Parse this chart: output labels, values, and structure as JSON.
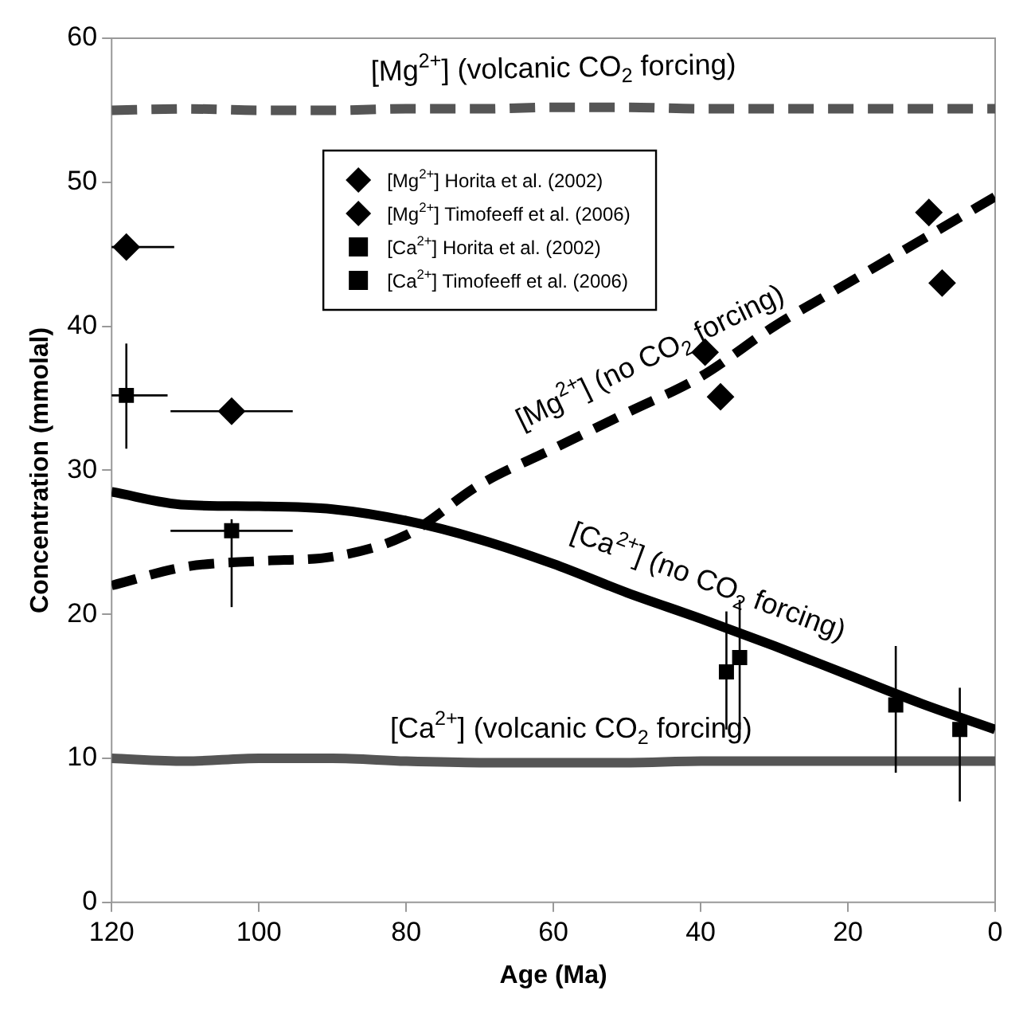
{
  "chart_data": {
    "type": "scatter",
    "xlabel": "Age (Ma)",
    "ylabel": "Concentration (mmolal)",
    "xlim": [
      120,
      0
    ],
    "xticks": [
      120,
      100,
      80,
      60,
      40,
      20,
      0
    ],
    "ylim": [
      0,
      60
    ],
    "yticks": [
      0,
      10,
      20,
      30,
      40,
      50,
      60
    ],
    "grid": false,
    "legend": "top",
    "series": [
      {
        "type": "line",
        "color": "#555555",
        "line_style": "dashed",
        "marker": "none",
        "x": [
          120,
          110,
          100,
          90,
          80,
          70,
          60,
          50,
          40,
          30,
          20,
          10,
          0
        ],
        "values": [
          55,
          55.1,
          55,
          55,
          55.1,
          55.1,
          55.2,
          55.2,
          55.1,
          55.1,
          55.1,
          55.1,
          55.1
        ]
      },
      {
        "type": "line",
        "color": "#000000",
        "line_style": "dashed",
        "marker": "none",
        "x": [
          120,
          110,
          100,
          90,
          80,
          70,
          60,
          50,
          40,
          30,
          20,
          10,
          0
        ],
        "values": [
          22,
          23.3,
          23.7,
          24,
          25.5,
          29,
          31.5,
          34,
          36.5,
          40,
          43,
          46,
          49
        ]
      },
      {
        "type": "line",
        "color": "#000000",
        "line_style": "solid",
        "marker": "none",
        "x": [
          120,
          110,
          100,
          90,
          80,
          70,
          60,
          50,
          40,
          30,
          20,
          10,
          0
        ],
        "values": [
          28.5,
          27.6,
          27.5,
          27.3,
          26.5,
          25.2,
          23.5,
          21.5,
          19.7,
          17.8,
          15.8,
          13.8,
          12
        ]
      },
      {
        "type": "line",
        "color": "#555555",
        "line_style": "solid",
        "marker": "none",
        "x": [
          120,
          110,
          100,
          90,
          80,
          70,
          60,
          50,
          40,
          30,
          20,
          10,
          0
        ],
        "values": [
          10,
          9.8,
          10,
          10,
          9.8,
          9.7,
          9.7,
          9.7,
          9.8,
          9.8,
          9.8,
          9.8,
          9.8
        ]
      },
      {
        "name": "[Mg$^{2+}$] Horita et al. (2002)",
        "color": "#000000",
        "marker": "diamond",
        "x": [
          39.4,
          37.3,
          9,
          7.2
        ],
        "values": [
          38.2,
          35.1,
          47.9,
          43
        ]
      },
      {
        "name": "[Mg$^{2+}$] Timofeeff et al. (2006)",
        "color": "#000000",
        "marker": "diamond",
        "x": [
          118,
          103.7
        ],
        "values": [
          45.5,
          34.1
        ],
        "xerrors": [
          [
            111.5,
            120
          ],
          [
            95.4,
            112
          ]
        ]
      },
      {
        "name": "[Ca$^{2+}$] Horita et al. (2002)",
        "color": "#000000",
        "marker": "square",
        "x": [
          36.5,
          34.7,
          13.5,
          4.8
        ],
        "values": [
          16,
          17,
          13.7,
          12
        ],
        "errors": [
          [
            12,
            20.2
          ],
          [
            12,
            21
          ],
          [
            9,
            17.8
          ],
          [
            7,
            14.9
          ]
        ]
      },
      {
        "name": "[Ca$^{2+}$] Timofeeff et al. (2006)",
        "color": "#000000",
        "marker": "square",
        "x": [
          118,
          103.7
        ],
        "values": [
          35.2,
          25.8
        ],
        "errors": [
          [
            31.5,
            38.8
          ],
          [
            20.5,
            26.6
          ]
        ],
        "xerrors": [
          [
            112.4,
            120
          ],
          [
            95.4,
            112
          ]
        ]
      }
    ],
    "annotations": [
      "[Mg$^{2+}$] (volcanic CO$_{2}$ forcing)",
      "[Mg$^{2+}$] (no CO$_{2}$ forcing)",
      "[Ca$^{2+}$] (no CO$_{2}$ forcing)",
      "[Ca$^{2+}$] (volcanic CO$_{2}$ forcing)"
    ]
  }
}
